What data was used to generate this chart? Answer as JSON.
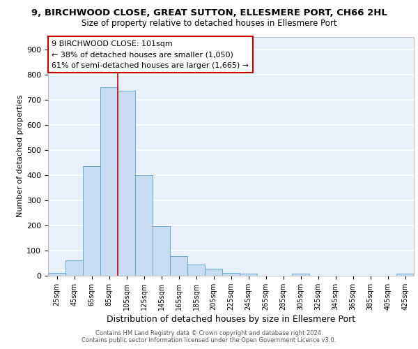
{
  "title1": "9, BIRCHWOOD CLOSE, GREAT SUTTON, ELLESMERE PORT, CH66 2HL",
  "title2": "Size of property relative to detached houses in Ellesmere Port",
  "xlabel": "Distribution of detached houses by size in Ellesmere Port",
  "ylabel": "Number of detached properties",
  "bar_labels": [
    "25sqm",
    "45sqm",
    "65sqm",
    "85sqm",
    "105sqm",
    "125sqm",
    "145sqm",
    "165sqm",
    "185sqm",
    "205sqm",
    "225sqm",
    "245sqm",
    "265sqm",
    "285sqm",
    "305sqm",
    "325sqm",
    "345sqm",
    "365sqm",
    "385sqm",
    "405sqm",
    "425sqm"
  ],
  "bar_values": [
    10,
    60,
    435,
    750,
    735,
    400,
    197,
    78,
    43,
    28,
    12,
    8,
    0,
    0,
    8,
    0,
    0,
    0,
    0,
    0,
    8
  ],
  "bar_color": "#c9ddf2",
  "bar_edge_color": "#6aaad4",
  "annotation_label": "9 BIRCHWOOD CLOSE: 101sqm",
  "annotation_line1": "← 38% of detached houses are smaller (1,050)",
  "annotation_line2": "61% of semi-detached houses are larger (1,665) →",
  "grid_color": "#ffffff",
  "bg_color": "#e8f0fa",
  "ylim": [
    0,
    950
  ],
  "yticks": [
    0,
    100,
    200,
    300,
    400,
    500,
    600,
    700,
    800,
    900
  ],
  "footer_line1": "Contains HM Land Registry data © Crown copyright and database right 2024.",
  "footer_line2": "Contains public sector information licensed under the Open Government Licence v3.0.",
  "title1_fontsize": 9.5,
  "title2_fontsize": 8.5,
  "xlabel_fontsize": 9,
  "ylabel_fontsize": 8,
  "tick_fontsize": 7,
  "footer_fontsize": 6,
  "annot_fontsize": 8
}
